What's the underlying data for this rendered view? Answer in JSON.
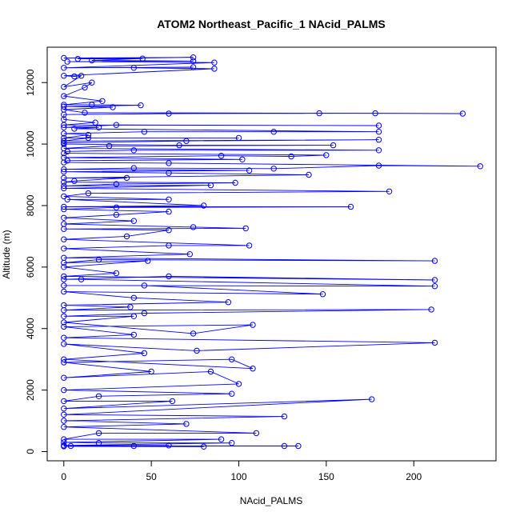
{
  "chart_data": {
    "type": "line",
    "title": "ATOM2 Northeast_Pacific_1 NAcid_PALMS",
    "xlabel": "NAcid_PALMS",
    "ylabel": "Altitude (m)",
    "xlim": [
      -9.5,
      247
    ],
    "ylim": [
      -300,
      13150
    ],
    "xticks": [
      0,
      50,
      100,
      150,
      200
    ],
    "yticks": [
      0,
      2000,
      4000,
      6000,
      8000,
      10000,
      12000
    ],
    "grid": false,
    "legend": "none",
    "color": "#0000ff",
    "marker": "open-circle",
    "series": [
      {
        "points": [
          [
            0,
            12800
          ],
          [
            74,
            12820
          ],
          [
            8,
            12770
          ],
          [
            45,
            12780
          ],
          [
            16,
            12720
          ],
          [
            74,
            12700
          ],
          [
            2,
            12680
          ],
          [
            86,
            12650
          ],
          [
            0,
            12480
          ],
          [
            74,
            12500
          ],
          [
            40,
            12480
          ],
          [
            86,
            12450
          ],
          [
            0,
            12220
          ],
          [
            6,
            12200
          ],
          [
            10,
            12220
          ],
          [
            0,
            11860
          ],
          [
            16,
            12000
          ],
          [
            12,
            11840
          ],
          [
            0,
            11560
          ],
          [
            22,
            11400
          ],
          [
            0,
            11280
          ],
          [
            16,
            11280
          ],
          [
            44,
            11260
          ],
          [
            0,
            11220
          ],
          [
            28,
            11200
          ],
          [
            0,
            11120
          ],
          [
            12,
            11020
          ],
          [
            228,
            10990
          ],
          [
            178,
            11000
          ],
          [
            146,
            11000
          ],
          [
            60,
            10990
          ],
          [
            0,
            10960
          ],
          [
            0,
            10800
          ],
          [
            18,
            10700
          ],
          [
            0,
            10620
          ],
          [
            180,
            10600
          ],
          [
            30,
            10620
          ],
          [
            0,
            10540
          ],
          [
            20,
            10540
          ],
          [
            6,
            10500
          ],
          [
            180,
            10400
          ],
          [
            120,
            10400
          ],
          [
            46,
            10400
          ],
          [
            0,
            10340
          ],
          [
            14,
            10300
          ],
          [
            0,
            10200
          ],
          [
            100,
            10200
          ],
          [
            14,
            10200
          ],
          [
            0,
            10100
          ],
          [
            180,
            10140
          ],
          [
            70,
            10100
          ],
          [
            0,
            10040
          ],
          [
            0,
            10000
          ],
          [
            66,
            9960
          ],
          [
            154,
            9960
          ],
          [
            26,
            9940
          ],
          [
            0,
            9860
          ],
          [
            180,
            9800
          ],
          [
            40,
            9800
          ],
          [
            2,
            9760
          ],
          [
            0,
            9700
          ],
          [
            150,
            9640
          ],
          [
            130,
            9600
          ],
          [
            90,
            9620
          ],
          [
            0,
            9560
          ],
          [
            102,
            9500
          ],
          [
            2,
            9460
          ],
          [
            0,
            9400
          ],
          [
            60,
            9380
          ],
          [
            238,
            9280
          ],
          [
            180,
            9300
          ],
          [
            120,
            9200
          ],
          [
            40,
            9220
          ],
          [
            0,
            9180
          ],
          [
            106,
            9140
          ],
          [
            0,
            9100
          ],
          [
            60,
            9060
          ],
          [
            140,
            9000
          ],
          [
            0,
            8900
          ],
          [
            36,
            8900
          ],
          [
            6,
            8800
          ],
          [
            0,
            8760
          ],
          [
            98,
            8740
          ],
          [
            30,
            8700
          ],
          [
            0,
            8640
          ],
          [
            84,
            8660
          ],
          [
            0,
            8560
          ],
          [
            186,
            8460
          ],
          [
            14,
            8400
          ],
          [
            0,
            8300
          ],
          [
            60,
            8200
          ],
          [
            2,
            8200
          ],
          [
            80,
            8000
          ],
          [
            0,
            7960
          ],
          [
            164,
            7960
          ],
          [
            30,
            7940
          ],
          [
            0,
            7880
          ],
          [
            60,
            7800
          ],
          [
            30,
            7700
          ],
          [
            0,
            7600
          ],
          [
            40,
            7500
          ],
          [
            0,
            7400
          ],
          [
            74,
            7300
          ],
          [
            104,
            7260
          ],
          [
            0,
            7240
          ],
          [
            60,
            7200
          ],
          [
            36,
            7000
          ],
          [
            0,
            6900
          ],
          [
            106,
            6700
          ],
          [
            60,
            6700
          ],
          [
            0,
            6600
          ],
          [
            72,
            6420
          ],
          [
            0,
            6300
          ],
          [
            212,
            6200
          ],
          [
            20,
            6240
          ],
          [
            0,
            6140
          ],
          [
            48,
            6200
          ],
          [
            0,
            6000
          ],
          [
            30,
            5800
          ],
          [
            0,
            5700
          ],
          [
            212,
            5580
          ],
          [
            60,
            5700
          ],
          [
            0,
            5600
          ],
          [
            10,
            5600
          ],
          [
            212,
            5380
          ],
          [
            0,
            5400
          ],
          [
            46,
            5400
          ],
          [
            148,
            5120
          ],
          [
            0,
            5200
          ],
          [
            40,
            5000
          ],
          [
            94,
            4860
          ],
          [
            0,
            4760
          ],
          [
            38,
            4700
          ],
          [
            0,
            4600
          ],
          [
            210,
            4620
          ],
          [
            46,
            4500
          ],
          [
            0,
            4400
          ],
          [
            40,
            4400
          ],
          [
            0,
            4200
          ],
          [
            74,
            3840
          ],
          [
            108,
            4120
          ],
          [
            0,
            4060
          ],
          [
            40,
            3800
          ],
          [
            0,
            3700
          ],
          [
            212,
            3540
          ],
          [
            76,
            3280
          ],
          [
            0,
            3500
          ],
          [
            46,
            3200
          ],
          [
            0,
            3000
          ],
          [
            108,
            2700
          ],
          [
            96,
            3000
          ],
          [
            0,
            2900
          ],
          [
            50,
            2600
          ],
          [
            0,
            2400
          ],
          [
            84,
            2600
          ],
          [
            100,
            2200
          ],
          [
            0,
            2000
          ],
          [
            96,
            1880
          ],
          [
            20,
            1800
          ],
          [
            0,
            1640
          ],
          [
            62,
            1640
          ],
          [
            0,
            1400
          ],
          [
            176,
            1700
          ],
          [
            0,
            1200
          ],
          [
            126,
            1140
          ],
          [
            0,
            1000
          ],
          [
            70,
            900
          ],
          [
            0,
            800
          ],
          [
            110,
            600
          ],
          [
            20,
            600
          ],
          [
            0,
            400
          ],
          [
            90,
            400
          ],
          [
            0,
            300
          ],
          [
            20,
            280
          ],
          [
            96,
            280
          ],
          [
            0,
            200
          ],
          [
            60,
            200
          ],
          [
            0,
            180
          ],
          [
            126,
            180
          ],
          [
            134,
            180
          ],
          [
            4,
            180
          ],
          [
            40,
            180
          ],
          [
            80,
            160
          ],
          [
            0,
            170
          ]
        ]
      }
    ]
  }
}
